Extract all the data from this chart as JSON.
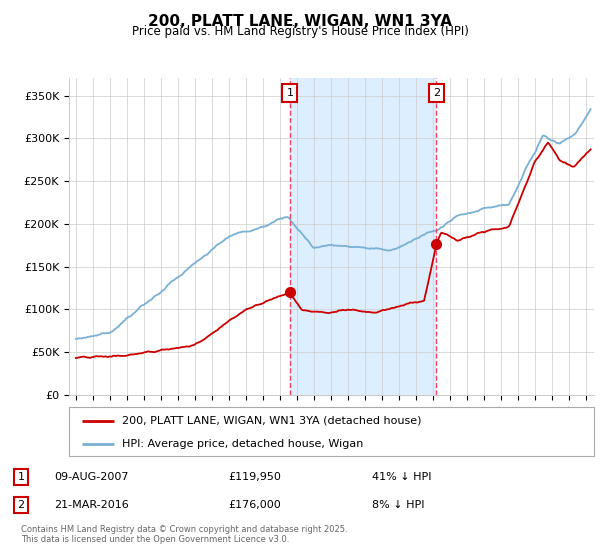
{
  "title": "200, PLATT LANE, WIGAN, WN1 3YA",
  "subtitle": "Price paid vs. HM Land Registry's House Price Index (HPI)",
  "ylabel_ticks": [
    "£0",
    "£50K",
    "£100K",
    "£150K",
    "£200K",
    "£250K",
    "£300K",
    "£350K"
  ],
  "ytick_values": [
    0,
    50000,
    100000,
    150000,
    200000,
    250000,
    300000,
    350000
  ],
  "ylim": [
    0,
    370000
  ],
  "xlim_start": 1994.6,
  "xlim_end": 2025.5,
  "legend_line1": "200, PLATT LANE, WIGAN, WN1 3YA (detached house)",
  "legend_line2": "HPI: Average price, detached house, Wigan",
  "sale1_date": "09-AUG-2007",
  "sale1_price": 119950,
  "sale1_label": "41% ↓ HPI",
  "sale1_year": 2007.6,
  "sale2_date": "21-MAR-2016",
  "sale2_price": 176000,
  "sale2_label": "8% ↓ HPI",
  "sale2_year": 2016.22,
  "red_color": "#cc0000",
  "blue_color": "#7ab0d4",
  "shade_color": "#ddeeff",
  "vline_color": "#ff4466",
  "footer": "Contains HM Land Registry data © Crown copyright and database right 2025.\nThis data is licensed under the Open Government Licence v3.0.",
  "background_color": "#ffffff",
  "plot_bg_color": "#ffffff",
  "grid_color": "#cccccc"
}
